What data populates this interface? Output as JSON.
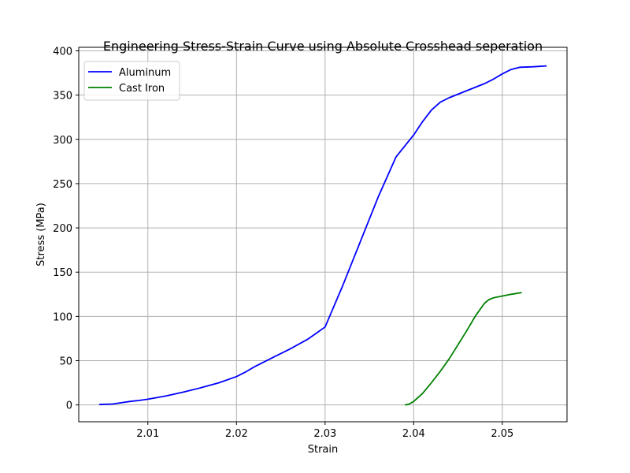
{
  "chart_data": {
    "type": "line",
    "title": "Engineering Stress-Strain Curve using Absolute Crosshead seperation",
    "xlabel": "Strain",
    "ylabel": "Stress (MPa)",
    "xlim": [
      2.0022,
      2.0573
    ],
    "ylim": [
      -19,
      404
    ],
    "x_ticks": [
      "2.01",
      "2.02",
      "2.03",
      "2.04",
      "2.05"
    ],
    "x_tick_values": [
      2.01,
      2.02,
      2.03,
      2.04,
      2.05
    ],
    "y_ticks": [
      "0",
      "50",
      "100",
      "150",
      "200",
      "250",
      "300",
      "350",
      "400"
    ],
    "y_tick_values": [
      0,
      50,
      100,
      150,
      200,
      250,
      300,
      350,
      400
    ],
    "grid": true,
    "legend": "top-left",
    "series": [
      {
        "name": "Aluminum",
        "color": "#0000ff",
        "x": [
          2.0045,
          2.006,
          2.007,
          2.008,
          2.009,
          2.01,
          2.012,
          2.014,
          2.016,
          2.018,
          2.02,
          2.021,
          2.022,
          2.024,
          2.026,
          2.028,
          2.029,
          2.03,
          2.032,
          2.034,
          2.036,
          2.038,
          2.04,
          2.041,
          2.042,
          2.043,
          2.044,
          2.046,
          2.048,
          2.049,
          2.05,
          2.051,
          2.052,
          2.0535,
          2.055
        ],
        "y": [
          0.5,
          1,
          2.5,
          4,
          5,
          6.5,
          10,
          14.5,
          19.5,
          25,
          32,
          37,
          43,
          53,
          63,
          74,
          81,
          88,
          135,
          185,
          235,
          280,
          305,
          320,
          333,
          342,
          347,
          355,
          363,
          368,
          374,
          379,
          381.5,
          382,
          383
        ]
      },
      {
        "name": "Cast Iron",
        "color": "#008000",
        "x": [
          2.039,
          2.0395,
          2.04,
          2.041,
          2.042,
          2.043,
          2.044,
          2.045,
          2.046,
          2.047,
          2.048,
          2.0485,
          2.049,
          2.05,
          2.051,
          2.0522
        ],
        "y": [
          0,
          1,
          4,
          13,
          25,
          38,
          52,
          68,
          84,
          101,
          115,
          119,
          121,
          123,
          125,
          127
        ]
      }
    ]
  }
}
